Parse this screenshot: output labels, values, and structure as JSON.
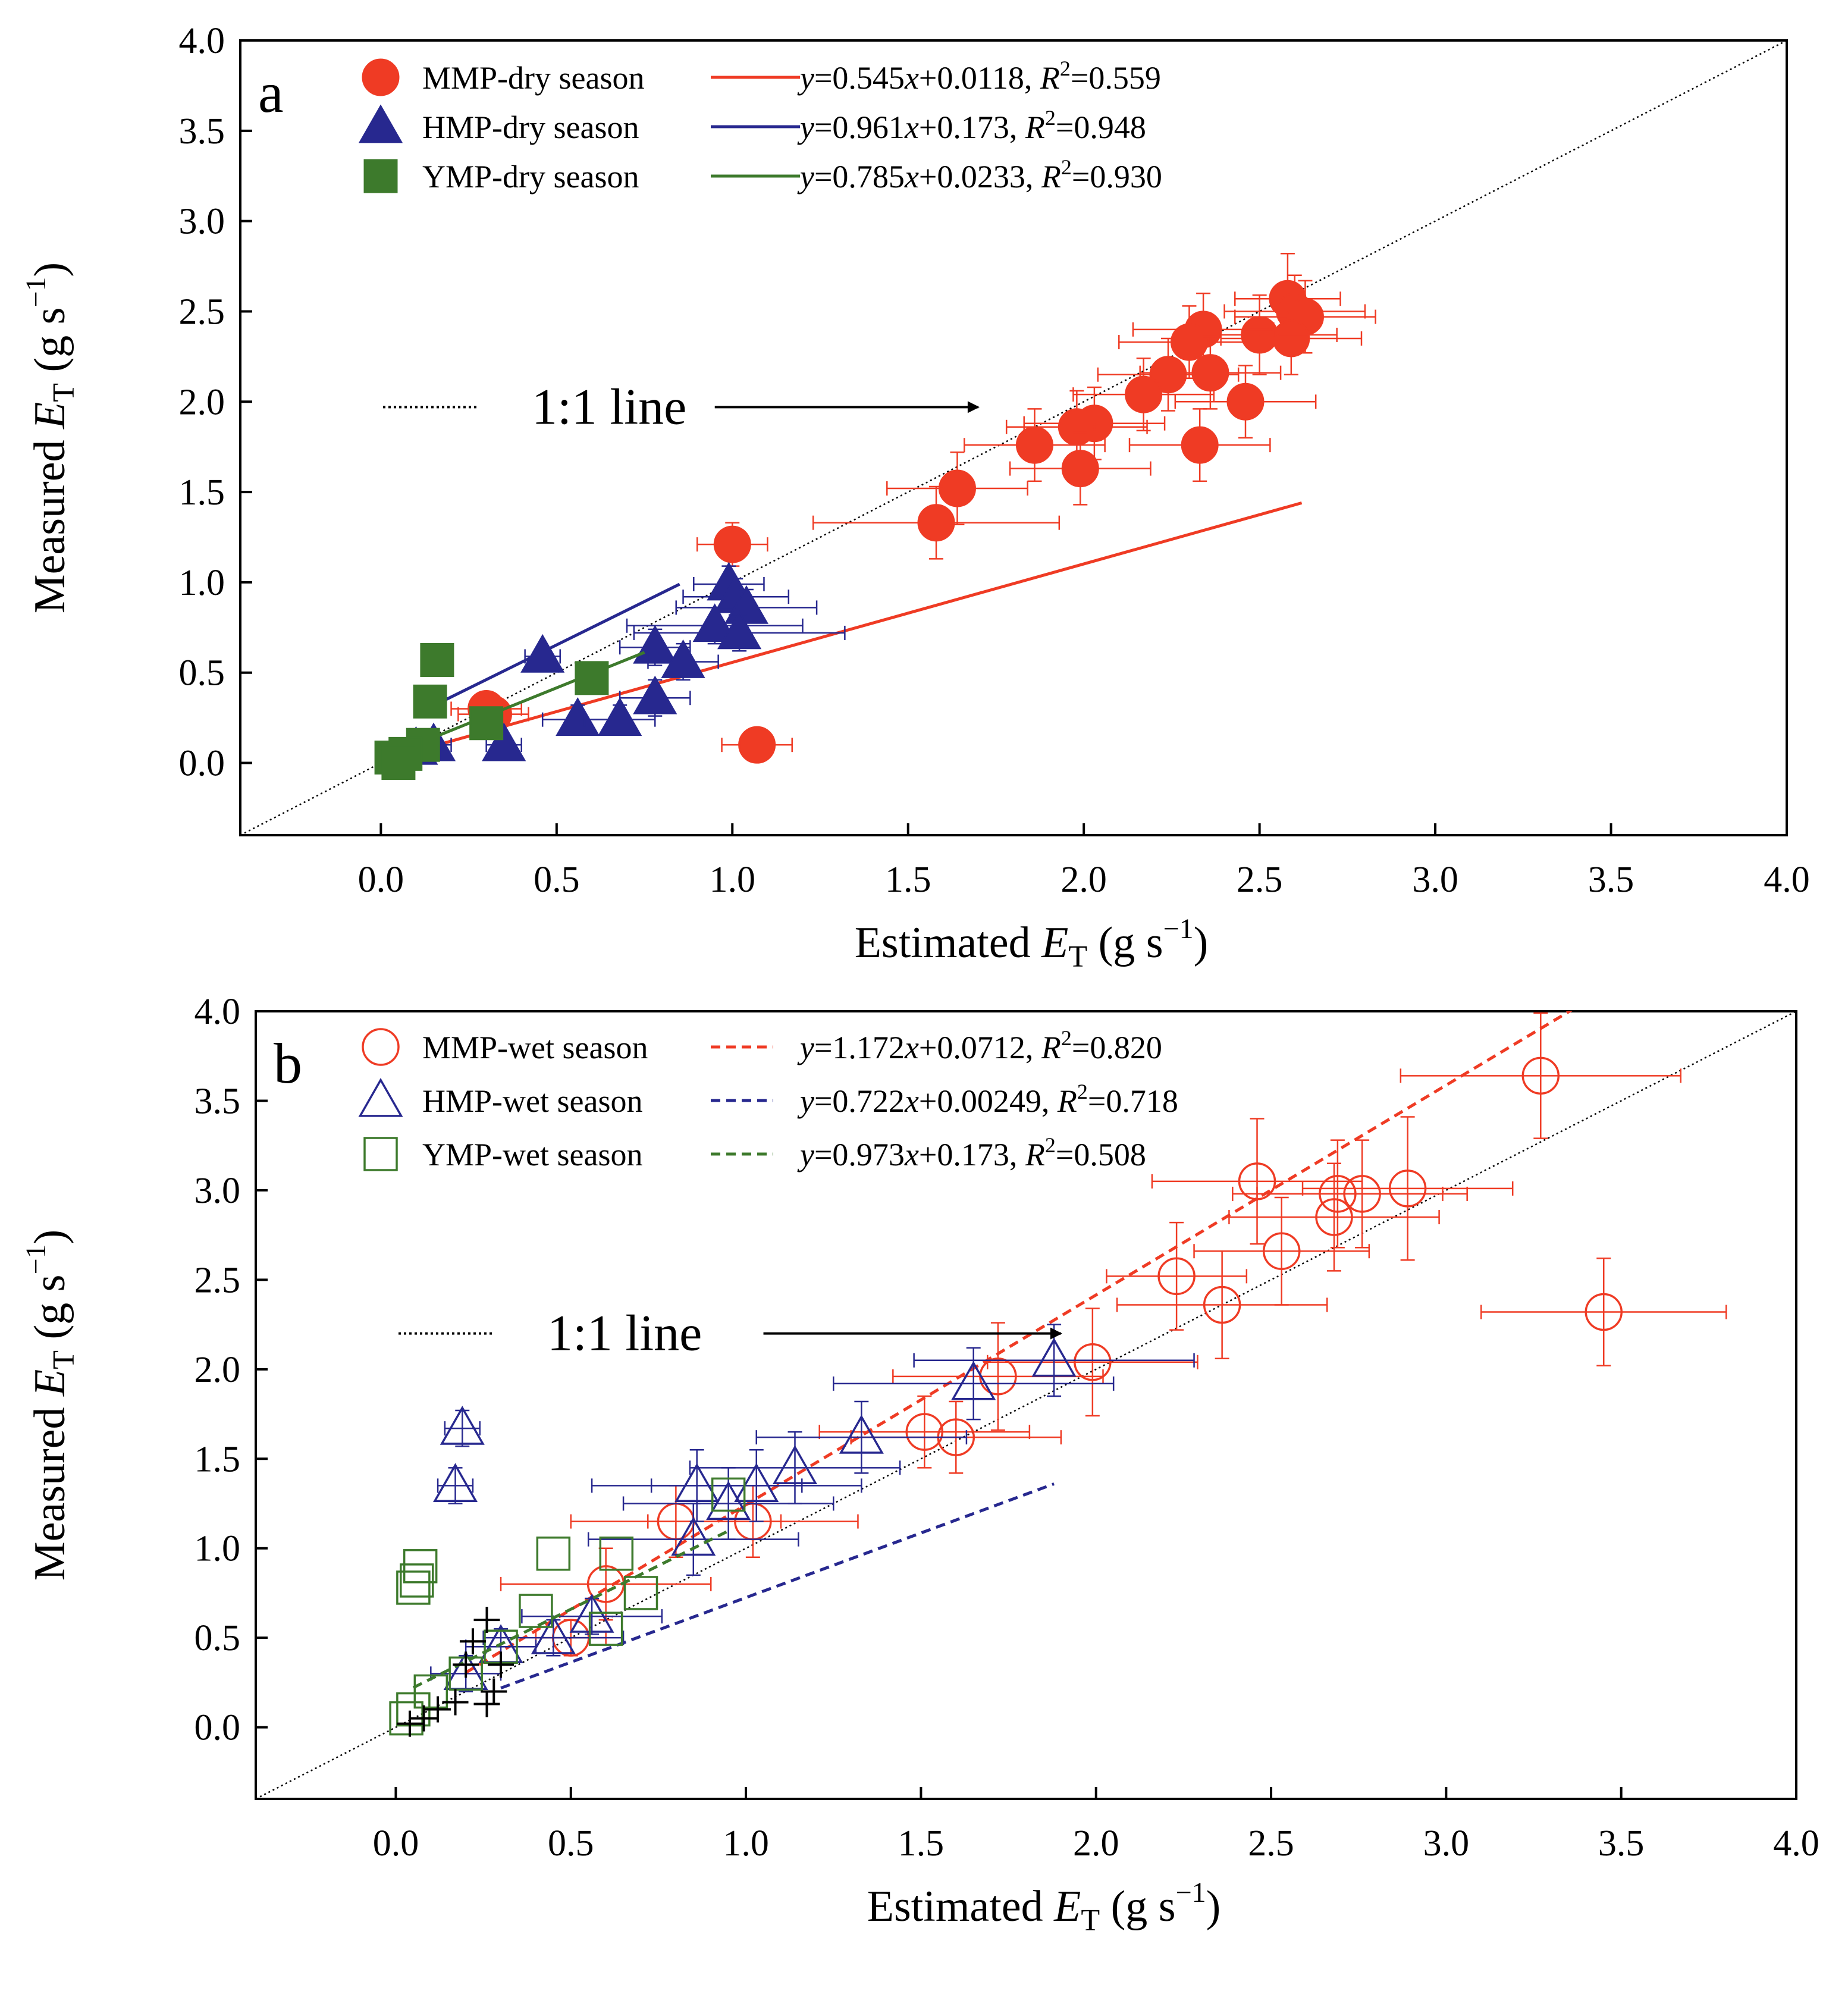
{
  "colors": {
    "mmp": "#ef3b24",
    "hmp": "#27288f",
    "ymp": "#3d7a2c",
    "line11": "#000000",
    "extra": "#000000"
  },
  "chart_data": [
    {
      "panel": "a",
      "type": "scatter",
      "xlabel_pre": "Estimated ",
      "ylabel_pre": "Measured ",
      "label_var": "E",
      "label_sub": "T",
      "unit_open": " (g s",
      "unit_sup": "−1",
      "unit_close": ")",
      "xlim": [
        -0.4,
        4.0
      ],
      "ylim": [
        -0.4,
        4.0
      ],
      "xticks": [
        "0.0",
        "0.5",
        "1.0",
        "1.5",
        "2.0",
        "2.5",
        "3.0",
        "3.5",
        "4.0"
      ],
      "yticks": [
        "0.0",
        "0.5",
        "1.0",
        "1.5",
        "2.0",
        "2.5",
        "3.0",
        "3.5",
        "4.0"
      ],
      "reference": {
        "label": "1:1 line",
        "arrow_from": [
          0.95,
          1.97
        ],
        "arrow_to": [
          1.7,
          1.97
        ]
      },
      "series": [
        {
          "name": "MMP-dry season",
          "key": "mmp",
          "marker": "circle",
          "filled": true,
          "fit": {
            "slope": 0.545,
            "intercept": 0.0118,
            "r2": "0.559",
            "eq": "y=0.545x+0.0118",
            "x_range": [
              0.1,
              2.62
            ],
            "dashed": false
          },
          "points": [
            [
              2.58,
              2.57,
              0.15,
              0.25
            ],
            [
              2.6,
              2.5,
              0.2,
              0.2
            ],
            [
              2.63,
              2.47,
              0.2,
              0.2
            ],
            [
              2.59,
              2.35,
              0.2,
              0.2
            ],
            [
              2.5,
              2.37,
              0.22,
              0.22
            ],
            [
              2.34,
              2.4,
              0.2,
              0.2
            ],
            [
              2.3,
              2.33,
              0.2,
              0.2
            ],
            [
              2.36,
              2.16,
              0.2,
              0.2
            ],
            [
              2.24,
              2.15,
              0.2,
              0.2
            ],
            [
              2.17,
              2.04,
              0.2,
              0.2
            ],
            [
              2.46,
              2.0,
              0.2,
              0.2
            ],
            [
              2.33,
              1.76,
              0.2,
              0.2
            ],
            [
              2.03,
              1.88,
              0.2,
              0.2
            ],
            [
              1.98,
              1.86,
              0.2,
              0.2
            ],
            [
              1.86,
              1.76,
              0.2,
              0.2
            ],
            [
              1.99,
              1.63,
              0.2,
              0.2
            ],
            [
              1.64,
              1.52,
              0.2,
              0.2
            ],
            [
              1.58,
              1.33,
              0.35,
              0.2
            ],
            [
              1.0,
              1.21,
              0.1,
              0.12
            ],
            [
              1.07,
              0.1,
              0.1,
              0.05
            ],
            [
              0.3,
              0.3,
              0.1,
              0.05
            ],
            [
              0.32,
              0.27,
              0.1,
              0.05
            ]
          ]
        },
        {
          "name": "HMP-dry season",
          "key": "hmp",
          "marker": "triangle",
          "filled": true,
          "fit": {
            "slope": 0.961,
            "intercept": 0.173,
            "r2": "0.948",
            "eq": "y=0.961x+0.173",
            "x_range": [
              0.1,
              0.85
            ],
            "dashed": false
          },
          "points": [
            [
              0.99,
              0.99,
              0.1,
              0.1
            ],
            [
              1.01,
              0.92,
              0.15,
              0.1
            ],
            [
              1.04,
              0.86,
              0.2,
              0.1
            ],
            [
              0.95,
              0.76,
              0.25,
              0.1
            ],
            [
              1.02,
              0.72,
              0.3,
              0.1
            ],
            [
              0.78,
              0.64,
              0.1,
              0.1
            ],
            [
              0.86,
              0.56,
              0.1,
              0.1
            ],
            [
              0.78,
              0.36,
              0.1,
              0.1
            ],
            [
              0.56,
              0.24,
              0.1,
              0.08
            ],
            [
              0.68,
              0.24,
              0.1,
              0.08
            ],
            [
              0.46,
              0.59,
              0.05,
              0.05
            ],
            [
              0.35,
              0.1,
              0.05,
              0.05
            ],
            [
              0.15,
              0.1,
              0.05,
              0.05
            ],
            [
              0.1,
              0.08,
              0.05,
              0.05
            ]
          ]
        },
        {
          "name": "YMP-dry season",
          "key": "ymp",
          "marker": "square",
          "filled": true,
          "fit": {
            "slope": 0.785,
            "intercept": 0.0233,
            "r2": "0.930",
            "eq": "y=0.785x+0.0233",
            "x_range": [
              0.05,
              0.75
            ],
            "dashed": false
          },
          "points": [
            [
              0.16,
              0.57,
              0,
              0
            ],
            [
              0.14,
              0.34,
              0,
              0
            ],
            [
              0.6,
              0.47,
              0,
              0
            ],
            [
              0.3,
              0.22,
              0,
              0
            ],
            [
              0.12,
              0.1,
              0,
              0
            ],
            [
              0.07,
              0.05,
              0,
              0
            ],
            [
              0.03,
              0.03,
              0,
              0
            ],
            [
              0.05,
              0.0,
              0,
              0
            ]
          ]
        }
      ]
    },
    {
      "panel": "b",
      "type": "scatter",
      "xlabel_pre": "Estimated ",
      "ylabel_pre": "Measured ",
      "label_var": "E",
      "label_sub": "T",
      "unit_open": " (g s",
      "unit_sup": "−1",
      "unit_close": ")",
      "xlim": [
        -0.4,
        4.0
      ],
      "ylim": [
        -0.4,
        4.0
      ],
      "xticks": [
        "0.0",
        "0.5",
        "1.0",
        "1.5",
        "2.0",
        "2.5",
        "3.0",
        "3.5",
        "4.0"
      ],
      "yticks": [
        "0.0",
        "0.5",
        "1.0",
        "1.5",
        "2.0",
        "2.5",
        "3.0",
        "3.5",
        "4.0"
      ],
      "reference": {
        "label": "1:1 line",
        "arrow_from": [
          1.05,
          2.2
        ],
        "arrow_to": [
          1.9,
          2.2
        ]
      },
      "series": [
        {
          "name": "MMP-wet season",
          "key": "mmp",
          "marker": "circle",
          "filled": false,
          "fit": {
            "slope": 1.172,
            "intercept": 0.0712,
            "r2": "0.820",
            "eq": "y=1.172x+0.0712",
            "x_range": [
              0.2,
              3.45
            ],
            "dashed": true
          },
          "points": [
            [
              3.27,
              3.64,
              0.4,
              0.35
            ],
            [
              2.46,
              3.05,
              0.3,
              0.35
            ],
            [
              2.69,
              2.98,
              0.3,
              0.3
            ],
            [
              2.76,
              2.98,
              0.3,
              0.3
            ],
            [
              2.89,
              3.01,
              0.3,
              0.4
            ],
            [
              2.68,
              2.85,
              0.3,
              0.3
            ],
            [
              2.53,
              2.66,
              0.25,
              0.3
            ],
            [
              2.23,
              2.52,
              0.2,
              0.3
            ],
            [
              2.36,
              2.36,
              0.3,
              0.3
            ],
            [
              3.45,
              2.32,
              0.35,
              0.3
            ],
            [
              1.99,
              2.04,
              0.3,
              0.3
            ],
            [
              1.72,
              1.96,
              0.3,
              0.3
            ],
            [
              1.51,
              1.65,
              0.3,
              0.2
            ],
            [
              1.6,
              1.62,
              0.3,
              0.2
            ],
            [
              1.02,
              1.15,
              0.3,
              0.2
            ],
            [
              0.8,
              1.15,
              0.3,
              0.2
            ],
            [
              0.6,
              0.8,
              0.3,
              0.2
            ],
            [
              0.5,
              0.5,
              0.1,
              0.1
            ]
          ]
        },
        {
          "name": "HMP-wet season",
          "key": "hmp",
          "marker": "triangle",
          "filled": false,
          "fit": {
            "slope": 0.722,
            "intercept": 0.00249,
            "r2": "0.718",
            "eq": "y=0.722x+0.00249",
            "x_range": [
              0.3,
              1.88
            ],
            "dashed": true
          },
          "points": [
            [
              0.19,
              1.67,
              0.05,
              0.1
            ],
            [
              0.17,
              1.35,
              0.05,
              0.1
            ],
            [
              1.88,
              2.05,
              0.4,
              0.2
            ],
            [
              1.65,
              1.92,
              0.4,
              0.2
            ],
            [
              1.33,
              1.62,
              0.3,
              0.2
            ],
            [
              1.14,
              1.45,
              0.3,
              0.2
            ],
            [
              1.03,
              1.35,
              0.3,
              0.2
            ],
            [
              0.86,
              1.35,
              0.3,
              0.2
            ],
            [
              0.95,
              1.25,
              0.3,
              0.2
            ],
            [
              0.85,
              1.05,
              0.3,
              0.2
            ],
            [
              0.56,
              0.62,
              0.2,
              0.1
            ],
            [
              0.45,
              0.5,
              0.2,
              0.1
            ],
            [
              0.3,
              0.45,
              0.1,
              0.1
            ],
            [
              0.2,
              0.3,
              0.1,
              0.1
            ]
          ]
        },
        {
          "name": "YMP-wet season",
          "key": "ymp",
          "marker": "square",
          "filled": false,
          "fit": {
            "slope": 0.973,
            "intercept": 0.173,
            "r2": "0.508",
            "eq": "y=0.973x+0.173",
            "x_range": [
              0.05,
              0.95
            ],
            "dashed": true
          },
          "points": [
            [
              0.07,
              0.9,
              0,
              0
            ],
            [
              0.06,
              0.82,
              0,
              0
            ],
            [
              0.05,
              0.78,
              0,
              0
            ],
            [
              0.45,
              0.97,
              0,
              0
            ],
            [
              0.63,
              0.97,
              0,
              0
            ],
            [
              0.95,
              1.3,
              0,
              0
            ],
            [
              0.7,
              0.75,
              0,
              0
            ],
            [
              0.6,
              0.55,
              0,
              0
            ],
            [
              0.4,
              0.65,
              0,
              0
            ],
            [
              0.3,
              0.45,
              0,
              0
            ],
            [
              0.2,
              0.3,
              0,
              0
            ],
            [
              0.1,
              0.2,
              0,
              0
            ],
            [
              0.05,
              0.1,
              0,
              0
            ],
            [
              0.03,
              0.05,
              0,
              0
            ]
          ]
        },
        {
          "name": "",
          "key": "extra",
          "marker": "plus",
          "filled": false,
          "points": [
            [
              0.26,
              0.6,
              0,
              0
            ],
            [
              0.22,
              0.48,
              0,
              0
            ],
            [
              0.3,
              0.35,
              0,
              0
            ],
            [
              0.28,
              0.2,
              0,
              0
            ],
            [
              0.26,
              0.13,
              0,
              0
            ],
            [
              0.17,
              0.14,
              0,
              0
            ],
            [
              0.12,
              0.1,
              0,
              0
            ],
            [
              0.08,
              0.05,
              0,
              0
            ],
            [
              0.04,
              0.02,
              0,
              0
            ],
            [
              0.2,
              0.35,
              0,
              0
            ]
          ]
        }
      ]
    }
  ]
}
